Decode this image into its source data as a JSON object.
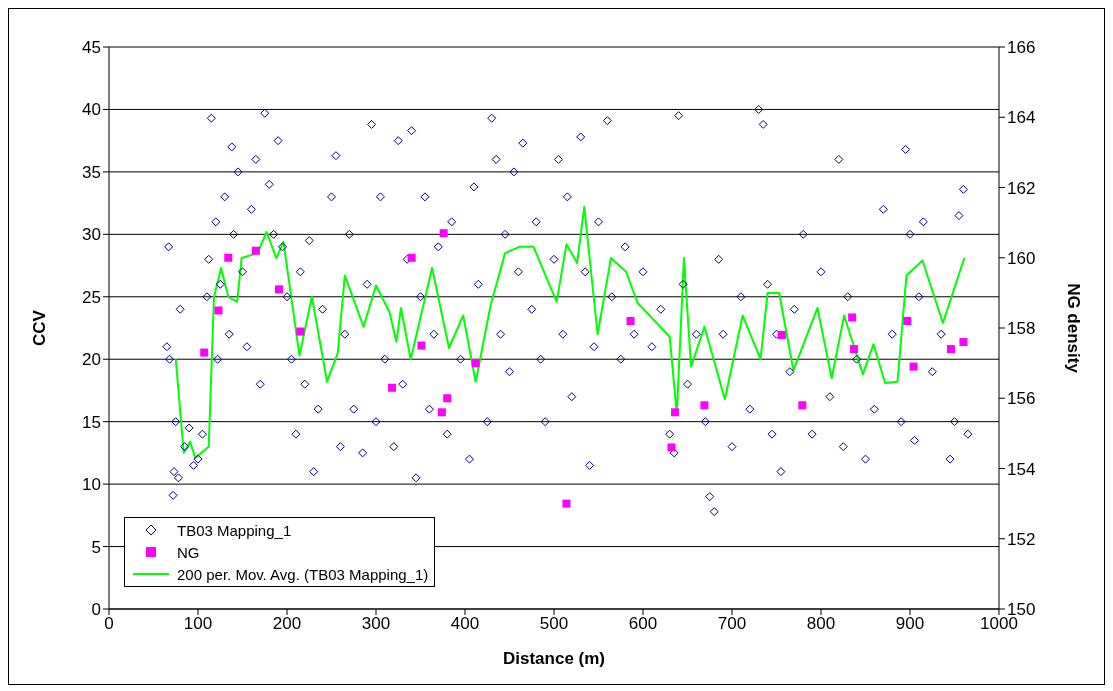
{
  "chart_data": {
    "type": "scatter",
    "xlabel": "Distance (m)",
    "ylabel": "CCV",
    "y2label": "NG density",
    "xlim": [
      0,
      1000
    ],
    "xticks": [
      0,
      100,
      200,
      300,
      400,
      500,
      600,
      700,
      800,
      900,
      1000
    ],
    "ylim": [
      0,
      45
    ],
    "yticks": [
      0,
      5,
      10,
      15,
      20,
      25,
      30,
      35,
      40,
      45
    ],
    "y2lim": [
      150,
      166
    ],
    "y2ticks": [
      150,
      152,
      154,
      156,
      158,
      160,
      162,
      164,
      166
    ],
    "grid": "y",
    "legend": "bottom left",
    "series": [
      {
        "name": "TB03 Mapping_1",
        "type": "scatter",
        "marker": "diamond",
        "color": "#000080",
        "x": [
          65,
          67,
          68,
          72,
          73,
          75,
          78,
          80,
          85,
          90,
          95,
          100,
          105,
          110,
          112,
          115,
          120,
          122,
          125,
          130,
          135,
          138,
          140,
          145,
          150,
          155,
          160,
          165,
          170,
          175,
          180,
          185,
          190,
          195,
          200,
          205,
          210,
          215,
          220,
          225,
          230,
          235,
          240,
          250,
          255,
          260,
          265,
          270,
          275,
          285,
          290,
          295,
          300,
          305,
          310,
          320,
          325,
          330,
          335,
          340,
          345,
          350,
          355,
          360,
          365,
          370,
          380,
          385,
          395,
          405,
          410,
          415,
          425,
          430,
          435,
          440,
          445,
          450,
          455,
          460,
          465,
          475,
          480,
          485,
          490,
          500,
          505,
          510,
          515,
          520,
          530,
          535,
          540,
          545,
          550,
          560,
          565,
          575,
          580,
          590,
          600,
          610,
          620,
          630,
          635,
          640,
          645,
          650,
          660,
          670,
          675,
          680,
          685,
          690,
          700,
          710,
          720,
          730,
          735,
          740,
          745,
          750,
          755,
          765,
          770,
          780,
          790,
          800,
          810,
          820,
          825,
          830,
          840,
          850,
          860,
          870,
          880,
          890,
          895,
          900,
          905,
          910,
          915,
          925,
          935,
          945,
          950,
          955,
          960,
          965
        ],
        "values": [
          21,
          29,
          20,
          9.1,
          11,
          15,
          10.5,
          24,
          13,
          14.5,
          11.5,
          12,
          14,
          25,
          28,
          39.3,
          31,
          20,
          26,
          33,
          22,
          37,
          30,
          35,
          27,
          21,
          32,
          36,
          18,
          39.7,
          34,
          30,
          37.5,
          29,
          25,
          20,
          14,
          27,
          18,
          29.5,
          11,
          16,
          24,
          33,
          36.3,
          13,
          22,
          30,
          16,
          12.5,
          26,
          38.8,
          15,
          33,
          20,
          13,
          37.5,
          18,
          28,
          38.3,
          10.5,
          25,
          33,
          16,
          22,
          29,
          14,
          31,
          20,
          12,
          33.8,
          26,
          15,
          39.3,
          36,
          22,
          30,
          19,
          35,
          27,
          37.3,
          24,
          31,
          20,
          15,
          28,
          36,
          22,
          33,
          17,
          37.8,
          27,
          11.5,
          21,
          31,
          39.1,
          25,
          20,
          29,
          22,
          27,
          21,
          24,
          14,
          12.5,
          39.5,
          26,
          18,
          22,
          15,
          9,
          7.8,
          28,
          22,
          13,
          25,
          16,
          40,
          38.8,
          26,
          14,
          22,
          11,
          19,
          24,
          30,
          14,
          27,
          17,
          36,
          13,
          25,
          20,
          12,
          16,
          32,
          22,
          15,
          36.8,
          30,
          13.5,
          25,
          31,
          19,
          22,
          12,
          15,
          31.5,
          33.6,
          14
        ]
      },
      {
        "name": "NG",
        "type": "scatter",
        "marker": "square",
        "axis": "y2",
        "color": "#ff00ff",
        "x": [
          107,
          123,
          134,
          165,
          191,
          215,
          318,
          340,
          351,
          374,
          376,
          380,
          412,
          514,
          586,
          632,
          636,
          669,
          756,
          779,
          835,
          837,
          897,
          904,
          946,
          960
        ],
        "values": [
          157.3,
          158.5,
          160,
          160.2,
          159.1,
          157.9,
          156.3,
          160,
          157.5,
          155.6,
          160.7,
          156,
          157,
          153,
          158.2,
          154.6,
          155.6,
          155.8,
          157.8,
          155.8,
          158.3,
          157.4,
          158.2,
          156.9,
          157.4,
          157.6
        ]
      },
      {
        "name": "200 per. Mov. Avg. (TB03 Mapping_1)",
        "type": "line",
        "marker": "none",
        "line_style": "solid",
        "color": "#00ff00",
        "x": [
          75,
          84,
          91,
          97,
          112,
          118,
          126,
          134,
          144,
          149,
          167,
          177,
          188,
          196,
          214,
          228,
          245,
          257,
          265,
          286,
          300,
          315,
          323,
          328,
          339,
          363,
          382,
          398,
          412,
          429,
          437,
          445,
          461,
          477,
          487,
          503,
          514,
          526,
          534,
          549,
          564,
          581,
          594,
          630,
          638,
          646,
          654,
          669,
          692,
          712,
          732,
          740,
          753,
          769,
          796,
          812,
          826,
          847,
          859,
          872,
          886,
          896,
          914,
          937,
          961
        ],
        "values": [
          20,
          12.5,
          13.4,
          12.1,
          13,
          25,
          27.3,
          25,
          24.6,
          28.1,
          28.5,
          30.2,
          28.1,
          29.4,
          20.3,
          25,
          18.2,
          20.5,
          26.7,
          22.6,
          25.9,
          23.8,
          21.4,
          24.1,
          20,
          27.3,
          20.9,
          23.5,
          18.2,
          24.4,
          26.4,
          28.5,
          29,
          29,
          27.3,
          24.6,
          29.2,
          27.7,
          32.2,
          22,
          28.1,
          27,
          24.5,
          21.8,
          15.6,
          28.1,
          19.4,
          22.6,
          16.8,
          23.5,
          20,
          25.3,
          25.3,
          19.1,
          24.1,
          18.5,
          23.5,
          18.8,
          21.2,
          18.1,
          18.2,
          26.7,
          27.9,
          22.9,
          28.1
        ]
      }
    ]
  }
}
